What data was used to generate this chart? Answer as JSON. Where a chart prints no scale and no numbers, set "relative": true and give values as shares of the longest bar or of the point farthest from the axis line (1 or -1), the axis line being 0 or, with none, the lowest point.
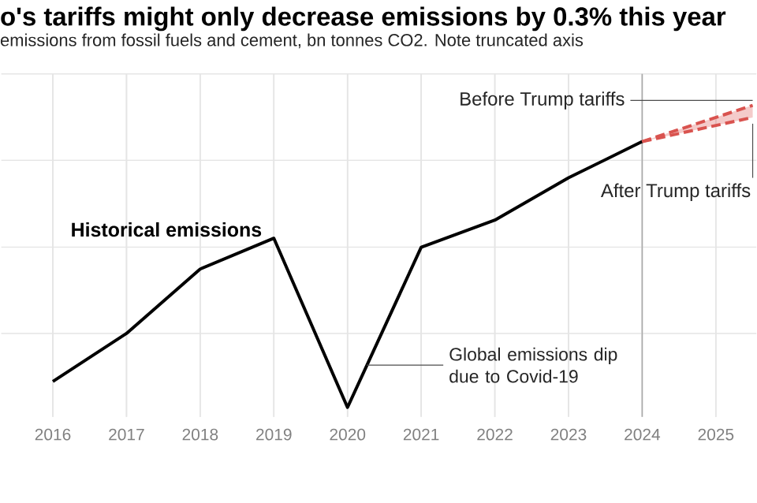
{
  "chart_data": {
    "type": "line",
    "title": "o's tariffs might only decrease emissions by 0.3% this year",
    "subtitle": "emissions from fossil fuels and cement, bn tonnes CO2. Note truncated axis",
    "relative": true,
    "xlim": [
      2015.3,
      2025.55
    ],
    "xticks": [
      2016,
      2017,
      2018,
      2019,
      2020,
      2021,
      2022,
      2023,
      2024,
      2025
    ],
    "grid": true,
    "series": [
      {
        "name": "Historical emissions",
        "color": "#000000",
        "line_style": "solid",
        "x": [
          2016,
          2017,
          2018,
          2019,
          2020,
          2021,
          2022,
          2023,
          2024
        ],
        "values": [
          0.086,
          0.245,
          0.458,
          0.56,
          0,
          0.53,
          0.62,
          0.76,
          0.88
        ]
      },
      {
        "name": "Before Trump tariffs",
        "color": "#d9534f",
        "line_style": "dashed",
        "x": [
          2024,
          2025.5
        ],
        "values": [
          0.88,
          1.0
        ],
        "lower": [
          0.88,
          0.96
        ],
        "upper": [
          0.88,
          1.0
        ]
      },
      {
        "name": "After Trump tariffs",
        "color": "#d9534f",
        "line_style": "dashed",
        "x": [
          2024,
          2025.5
        ],
        "values": [
          0.88,
          0.96
        ]
      }
    ],
    "annotations": [
      {
        "text": "Global emissions dip due to Covid-19",
        "x": 2020.26,
        "y": 0.14
      }
    ],
    "ref_lines": [
      {
        "axis": "x",
        "value": 2024,
        "color": "#aaaaaa"
      }
    ]
  }
}
